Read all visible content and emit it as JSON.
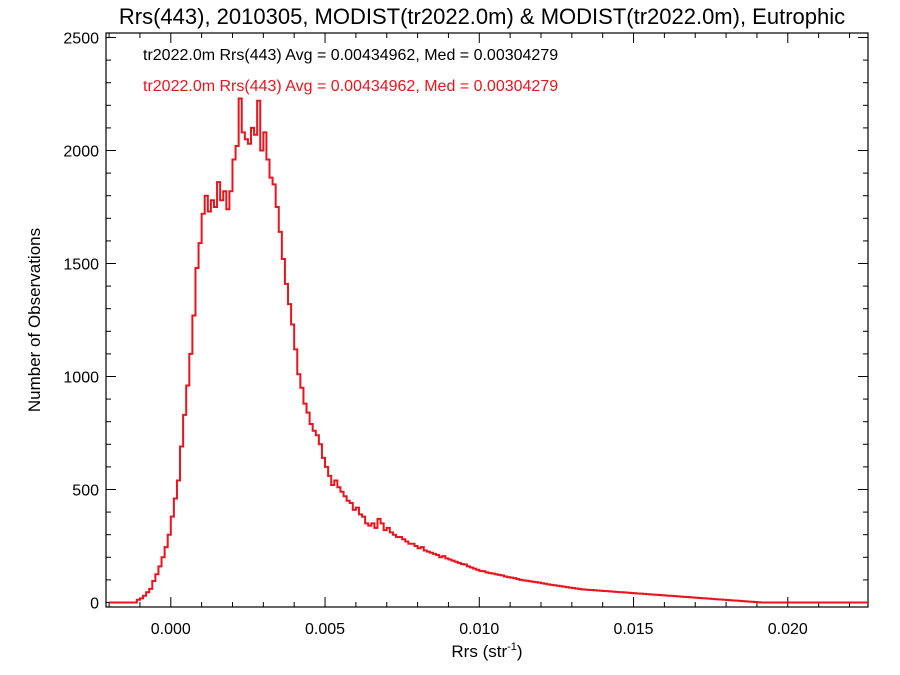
{
  "chart_data": {
    "type": "line",
    "title": "Rrs(443), 2010305, MODIST(tr2022.0m) & MODIST(tr2022.0m), Eutrophic",
    "xlabel": "Rrs (str",
    "xlabel_sup": "-1",
    "xlabel_close": ")",
    "ylabel": "Number of Observations",
    "xlim": [
      -0.0021,
      0.0226
    ],
    "ylim": [
      -20,
      2520
    ],
    "x_ticks": [
      0.0,
      0.005,
      0.01,
      0.015,
      0.02
    ],
    "x_tick_labels": [
      "0.000",
      "0.005",
      "0.010",
      "0.015",
      "0.020"
    ],
    "y_ticks": [
      0,
      500,
      1000,
      1500,
      2000,
      2500
    ],
    "y_tick_labels": [
      "0",
      "500",
      "1000",
      "1500",
      "2000",
      "2500"
    ],
    "grid": false,
    "legend_position": "top-left",
    "annotations": [
      {
        "text": "tr2022.0m Rrs(443) Avg = 0.00434962, Med = 0.00304279",
        "color": "#000000"
      },
      {
        "text": "tr2022.0m Rrs(443) Avg = 0.00434962, Med = 0.00304279",
        "color": "#e8141e"
      }
    ],
    "series": [
      {
        "style": "step",
        "color": "#e8141e",
        "points": [
          [
            -0.002,
            0
          ],
          [
            -0.0012,
            0
          ],
          [
            -0.0011,
            12
          ],
          [
            -0.001,
            18
          ],
          [
            -0.0009,
            30
          ],
          [
            -0.0008,
            45
          ],
          [
            -0.0007,
            60
          ],
          [
            -0.0006,
            95
          ],
          [
            -0.0005,
            125
          ],
          [
            -0.0004,
            160
          ],
          [
            -0.0003,
            200
          ],
          [
            -0.0002,
            245
          ],
          [
            -0.0001,
            300
          ],
          [
            0.0,
            380
          ],
          [
            0.0001,
            460
          ],
          [
            0.0002,
            540
          ],
          [
            0.0003,
            690
          ],
          [
            0.0004,
            830
          ],
          [
            0.0005,
            960
          ],
          [
            0.0006,
            1100
          ],
          [
            0.0007,
            1270
          ],
          [
            0.0008,
            1480
          ],
          [
            0.0009,
            1590
          ],
          [
            0.001,
            1720
          ],
          [
            0.0011,
            1800
          ],
          [
            0.0012,
            1730
          ],
          [
            0.0013,
            1780
          ],
          [
            0.0014,
            1750
          ],
          [
            0.0015,
            1860
          ],
          [
            0.0016,
            1780
          ],
          [
            0.0017,
            1820
          ],
          [
            0.0018,
            1740
          ],
          [
            0.0019,
            1820
          ],
          [
            0.002,
            1960
          ],
          [
            0.0021,
            2020
          ],
          [
            0.0022,
            2230
          ],
          [
            0.0023,
            2080
          ],
          [
            0.0024,
            2050
          ],
          [
            0.0025,
            2030
          ],
          [
            0.0026,
            2100
          ],
          [
            0.0027,
            2070
          ],
          [
            0.0028,
            2220
          ],
          [
            0.0029,
            2000
          ],
          [
            0.003,
            2080
          ],
          [
            0.0031,
            1960
          ],
          [
            0.0032,
            1880
          ],
          [
            0.0033,
            1850
          ],
          [
            0.0034,
            1750
          ],
          [
            0.0035,
            1640
          ],
          [
            0.0036,
            1520
          ],
          [
            0.0037,
            1410
          ],
          [
            0.0038,
            1320
          ],
          [
            0.0039,
            1230
          ],
          [
            0.004,
            1120
          ],
          [
            0.0041,
            1010
          ],
          [
            0.0042,
            950
          ],
          [
            0.0043,
            880
          ],
          [
            0.0044,
            840
          ],
          [
            0.0045,
            790
          ],
          [
            0.0046,
            760
          ],
          [
            0.0047,
            740
          ],
          [
            0.0048,
            700
          ],
          [
            0.0049,
            640
          ],
          [
            0.005,
            600
          ],
          [
            0.0051,
            560
          ],
          [
            0.0052,
            520
          ],
          [
            0.0053,
            540
          ],
          [
            0.0054,
            510
          ],
          [
            0.0055,
            490
          ],
          [
            0.0056,
            470
          ],
          [
            0.0057,
            450
          ],
          [
            0.0058,
            440
          ],
          [
            0.0059,
            410
          ],
          [
            0.006,
            420
          ],
          [
            0.0061,
            390
          ],
          [
            0.0062,
            380
          ],
          [
            0.0063,
            350
          ],
          [
            0.0064,
            340
          ],
          [
            0.0065,
            350
          ],
          [
            0.0066,
            330
          ],
          [
            0.0067,
            370
          ],
          [
            0.0068,
            350
          ],
          [
            0.0069,
            320
          ],
          [
            0.007,
            330
          ],
          [
            0.0071,
            310
          ],
          [
            0.0072,
            300
          ],
          [
            0.0073,
            290
          ],
          [
            0.0074,
            290
          ],
          [
            0.0075,
            280
          ],
          [
            0.0076,
            270
          ],
          [
            0.0077,
            260
          ],
          [
            0.0078,
            260
          ],
          [
            0.0079,
            250
          ],
          [
            0.008,
            240
          ],
          [
            0.0081,
            245
          ],
          [
            0.0082,
            230
          ],
          [
            0.0083,
            225
          ],
          [
            0.0084,
            220
          ],
          [
            0.0085,
            215
          ],
          [
            0.0086,
            210
          ],
          [
            0.0087,
            200
          ],
          [
            0.0088,
            205
          ],
          [
            0.0089,
            195
          ],
          [
            0.009,
            190
          ],
          [
            0.0091,
            185
          ],
          [
            0.0092,
            180
          ],
          [
            0.0093,
            175
          ],
          [
            0.0094,
            170
          ],
          [
            0.0095,
            168
          ],
          [
            0.0096,
            160
          ],
          [
            0.0097,
            155
          ],
          [
            0.0098,
            150
          ],
          [
            0.0099,
            145
          ],
          [
            0.01,
            140
          ],
          [
            0.0101,
            138
          ],
          [
            0.0102,
            133
          ],
          [
            0.0103,
            130
          ],
          [
            0.0104,
            128
          ],
          [
            0.0105,
            125
          ],
          [
            0.0106,
            122
          ],
          [
            0.0107,
            120
          ],
          [
            0.0108,
            115
          ],
          [
            0.0109,
            112
          ],
          [
            0.011,
            110
          ],
          [
            0.0111,
            108
          ],
          [
            0.0112,
            104
          ],
          [
            0.0113,
            100
          ],
          [
            0.0114,
            98
          ],
          [
            0.0115,
            96
          ],
          [
            0.0116,
            94
          ],
          [
            0.0117,
            92
          ],
          [
            0.0118,
            90
          ],
          [
            0.0119,
            88
          ],
          [
            0.012,
            85
          ],
          [
            0.0121,
            83
          ],
          [
            0.0122,
            80
          ],
          [
            0.0123,
            78
          ],
          [
            0.0124,
            76
          ],
          [
            0.0125,
            74
          ],
          [
            0.0126,
            72
          ],
          [
            0.0127,
            70
          ],
          [
            0.0128,
            68
          ],
          [
            0.0129,
            66
          ],
          [
            0.013,
            64
          ],
          [
            0.0131,
            62
          ],
          [
            0.0132,
            60
          ],
          [
            0.0133,
            58
          ],
          [
            0.0134,
            57
          ],
          [
            0.0135,
            56
          ],
          [
            0.0136,
            55
          ],
          [
            0.0137,
            54
          ],
          [
            0.0138,
            53
          ],
          [
            0.0139,
            52
          ],
          [
            0.014,
            51
          ],
          [
            0.0141,
            50
          ],
          [
            0.0142,
            49
          ],
          [
            0.0143,
            48
          ],
          [
            0.0144,
            47
          ],
          [
            0.0145,
            46
          ],
          [
            0.0146,
            45
          ],
          [
            0.0147,
            44
          ],
          [
            0.0148,
            43
          ],
          [
            0.0149,
            42
          ],
          [
            0.015,
            41
          ],
          [
            0.0151,
            40
          ],
          [
            0.0152,
            39
          ],
          [
            0.0153,
            38
          ],
          [
            0.0154,
            37
          ],
          [
            0.0155,
            36
          ],
          [
            0.0156,
            35
          ],
          [
            0.0157,
            34
          ],
          [
            0.0158,
            33
          ],
          [
            0.0159,
            32
          ],
          [
            0.016,
            31
          ],
          [
            0.0161,
            30
          ],
          [
            0.0162,
            29
          ],
          [
            0.0163,
            28
          ],
          [
            0.0164,
            27
          ],
          [
            0.0165,
            26
          ],
          [
            0.0166,
            25
          ],
          [
            0.0167,
            24
          ],
          [
            0.0168,
            23
          ],
          [
            0.0169,
            22
          ],
          [
            0.017,
            21
          ],
          [
            0.0171,
            20
          ],
          [
            0.0172,
            19
          ],
          [
            0.0173,
            18
          ],
          [
            0.0174,
            17
          ],
          [
            0.0175,
            16
          ],
          [
            0.0176,
            15
          ],
          [
            0.0177,
            14
          ],
          [
            0.0178,
            13
          ],
          [
            0.0179,
            12
          ],
          [
            0.018,
            11
          ],
          [
            0.0181,
            10
          ],
          [
            0.0182,
            9
          ],
          [
            0.0183,
            8
          ],
          [
            0.0184,
            7
          ],
          [
            0.0185,
            6
          ],
          [
            0.0186,
            5
          ],
          [
            0.0187,
            4
          ],
          [
            0.0188,
            3
          ],
          [
            0.0189,
            2
          ],
          [
            0.019,
            1
          ],
          [
            0.0191,
            0
          ],
          [
            0.0226,
            0
          ]
        ]
      }
    ]
  }
}
